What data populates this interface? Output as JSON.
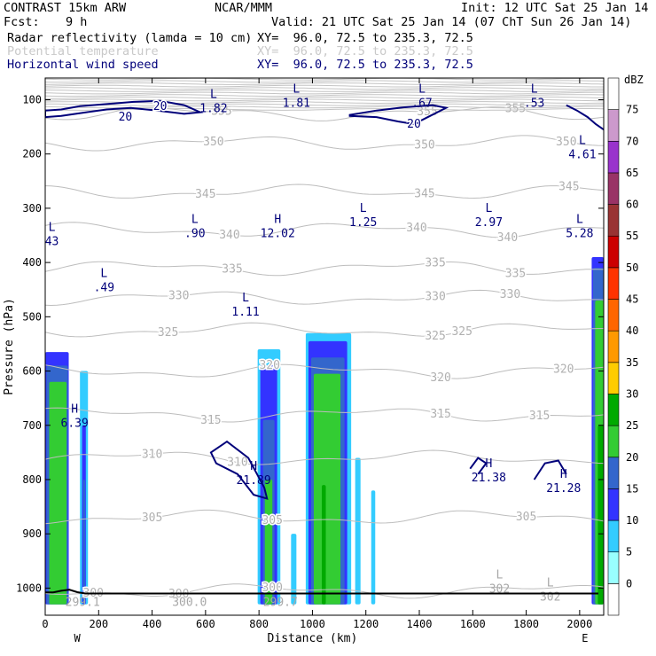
{
  "header": {
    "model": "CONTRAST 15km ARW",
    "center": "NCAR/MMM",
    "init": "Init: 12 UTC Sat 25 Jan 14",
    "fcst_label": "Fcst:",
    "fcst_value": "9 h",
    "valid": "Valid: 21 UTC Sat 25 Jan 14 (07 ChT Sun 26 Jan 14)",
    "fields": [
      {
        "name": "Radar reflectivity (lamda = 10 cm)",
        "xy": "XY=  96.0, 72.5 to 235.3, 72.5",
        "color": "#000000"
      },
      {
        "name": "Potential temperature",
        "xy": "XY=  96.0, 72.5 to 235.3, 72.5",
        "color": "#c9c9c9"
      },
      {
        "name": "Horizontal wind speed",
        "xy": "XY=  96.0, 72.5 to 235.3, 72.5",
        "color": "#00007a"
      }
    ]
  },
  "chart_data": {
    "type": "cross-section",
    "xlabel": "Distance (km)",
    "ylabel": "Pressure (hPa)",
    "xlim": [
      0,
      2090
    ],
    "ylim": [
      1050,
      60
    ],
    "x_ticks": [
      0,
      200,
      400,
      600,
      800,
      1000,
      1200,
      1400,
      1600,
      1800,
      2000
    ],
    "y_ticks": [
      100,
      200,
      300,
      400,
      500,
      600,
      700,
      800,
      900,
      1000
    ],
    "x_end_labels": {
      "left": "W",
      "right": "E"
    },
    "colorbar": {
      "unit": "dBZ",
      "levels": [
        0,
        5,
        10,
        15,
        20,
        25,
        30,
        35,
        40,
        45,
        50,
        55,
        60,
        65,
        70,
        75
      ],
      "colors": [
        "#ffffff",
        "#99ffff",
        "#33ccff",
        "#3333ff",
        "#3366cc",
        "#33cc33",
        "#00aa00",
        "#ffcc00",
        "#ff9900",
        "#ff6600",
        "#ff3300",
        "#cc0000",
        "#993333",
        "#993366",
        "#9933cc",
        "#cc99cc",
        "#ffffff"
      ]
    },
    "reflectivity_columns": [
      {
        "x0": 0,
        "x1": 88,
        "top": 565,
        "levels": [
          [
            0,
            88,
            565,
            10
          ],
          [
            5,
            85,
            590,
            15
          ],
          [
            15,
            80,
            620,
            20
          ]
        ]
      },
      {
        "x0": 130,
        "x1": 160,
        "top": 600,
        "levels": [
          [
            130,
            160,
            600,
            5
          ],
          [
            138,
            152,
            700,
            10
          ],
          [
            142,
            148,
            800,
            15
          ]
        ]
      },
      {
        "x0": 795,
        "x1": 880,
        "top": 560,
        "levels": [
          [
            795,
            880,
            560,
            5
          ],
          [
            805,
            868,
            590,
            10
          ],
          [
            815,
            858,
            690,
            15
          ],
          [
            822,
            850,
            800,
            20
          ]
        ]
      },
      {
        "x0": 920,
        "x1": 940,
        "top": 900,
        "levels": [
          [
            920,
            940,
            900,
            5
          ]
        ]
      },
      {
        "x0": 975,
        "x1": 1145,
        "top": 530,
        "levels": [
          [
            975,
            1145,
            530,
            5
          ],
          [
            985,
            1130,
            545,
            10
          ],
          [
            995,
            1120,
            575,
            15
          ],
          [
            1005,
            1105,
            605,
            20
          ],
          [
            1035,
            1050,
            810,
            25
          ]
        ]
      },
      {
        "x0": 1160,
        "x1": 1180,
        "top": 760,
        "levels": [
          [
            1160,
            1180,
            760,
            5
          ]
        ]
      },
      {
        "x0": 1220,
        "x1": 1235,
        "top": 820,
        "levels": [
          [
            1220,
            1235,
            820,
            5
          ]
        ]
      },
      {
        "x0": 2045,
        "x1": 2090,
        "top": 390,
        "levels": [
          [
            2045,
            2090,
            390,
            10
          ],
          [
            2050,
            2090,
            410,
            15
          ],
          [
            2058,
            2090,
            470,
            20
          ],
          [
            2068,
            2090,
            700,
            25
          ]
        ]
      }
    ],
    "isentropes": [
      {
        "value": 300,
        "p_mean": 1005,
        "label_x": [
          180,
          500,
          850
        ]
      },
      {
        "value": 305,
        "p_mean": 870,
        "label_x": [
          400,
          850,
          1800
        ]
      },
      {
        "value": 310,
        "p_mean": 760,
        "label_x": [
          400,
          720
        ]
      },
      {
        "value": 315,
        "p_mean": 680,
        "label_x": [
          620,
          1480,
          1850
        ]
      },
      {
        "value": 320,
        "p_mean": 600,
        "label_x": [
          840,
          1480,
          1940
        ]
      },
      {
        "value": 325,
        "p_mean": 525,
        "label_x": [
          460,
          1460,
          1560
        ]
      },
      {
        "value": 330,
        "p_mean": 465,
        "label_x": [
          500,
          1460,
          1740
        ]
      },
      {
        "value": 335,
        "p_mean": 410,
        "label_x": [
          700,
          1460,
          1760
        ]
      },
      {
        "value": 340,
        "p_mean": 340,
        "label_x": [
          690,
          1390,
          1730
        ]
      },
      {
        "value": 345,
        "p_mean": 270,
        "label_x": [
          600,
          1420,
          1960
        ]
      },
      {
        "value": 350,
        "p_mean": 180,
        "label_x": [
          630,
          1420,
          1950
        ]
      },
      {
        "value": 355,
        "p_mean": 125,
        "label_x": [
          660,
          1430,
          1760
        ]
      }
    ],
    "wind_contours": [
      {
        "value": 20,
        "label_x": [
          300,
          430,
          1380
        ]
      }
    ],
    "centers": [
      {
        "kind": "L",
        "value": "1.82",
        "x": 630,
        "p": 110,
        "field": "wind"
      },
      {
        "kind": "L",
        "value": "1.81",
        "x": 940,
        "p": 100,
        "field": "wind"
      },
      {
        "kind": "L",
        "value": ".67",
        "x": 1410,
        "p": 100,
        "field": "wind"
      },
      {
        "kind": "L",
        "value": ".53",
        "x": 1830,
        "p": 100,
        "field": "wind"
      },
      {
        "kind": "L",
        "value": "4.61",
        "x": 2010,
        "p": 195,
        "field": "wind"
      },
      {
        "kind": "L",
        "value": ".90",
        "x": 560,
        "p": 340,
        "field": "wind"
      },
      {
        "kind": "H",
        "value": "12.02",
        "x": 870,
        "p": 340,
        "field": "wind"
      },
      {
        "kind": "L",
        "value": "1.25",
        "x": 1190,
        "p": 320,
        "field": "wind"
      },
      {
        "kind": "L",
        "value": "2.97",
        "x": 1660,
        "p": 320,
        "field": "wind"
      },
      {
        "kind": "L",
        "value": "5.28",
        "x": 2000,
        "p": 340,
        "field": "wind"
      },
      {
        "kind": "L",
        "value": "43",
        "x": 25,
        "p": 355,
        "field": "wind"
      },
      {
        "kind": "L",
        "value": ".49",
        "x": 220,
        "p": 440,
        "field": "wind"
      },
      {
        "kind": "L",
        "value": "1.11",
        "x": 750,
        "p": 485,
        "field": "wind"
      },
      {
        "kind": "H",
        "value": "6.39",
        "x": 110,
        "p": 690,
        "field": "wind"
      },
      {
        "kind": "H",
        "value": "21.89",
        "x": 780,
        "p": 795,
        "field": "wind"
      },
      {
        "kind": "H",
        "value": "21.38",
        "x": 1660,
        "p": 790,
        "field": "wind"
      },
      {
        "kind": "H",
        "value": "21.28",
        "x": 1940,
        "p": 810,
        "field": "wind"
      },
      {
        "kind": "L",
        "value": "302",
        "x": 1700,
        "p": 995,
        "field": "theta"
      },
      {
        "kind": "L",
        "value": "302",
        "x": 1890,
        "p": 1010,
        "field": "theta"
      },
      {
        "kind": "",
        "value": "299.1",
        "x": 140,
        "p": 1020,
        "field": "theta"
      },
      {
        "kind": "",
        "value": "300.0",
        "x": 540,
        "p": 1020,
        "field": "theta"
      },
      {
        "kind": "",
        "value": "299.7",
        "x": 880,
        "p": 1020,
        "field": "theta"
      }
    ]
  }
}
